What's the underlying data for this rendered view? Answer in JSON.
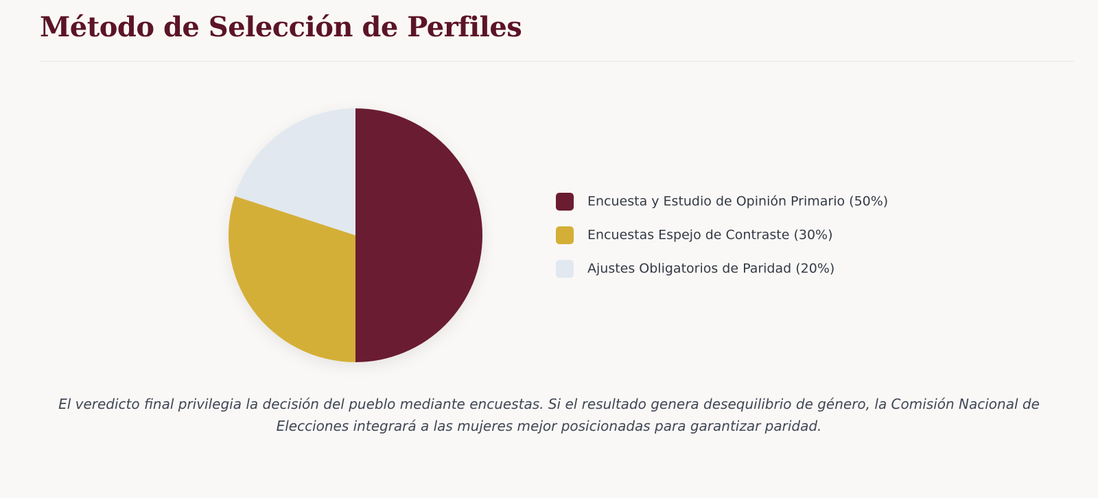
{
  "chart_data": {
    "type": "pie",
    "title": "Método de Selección de Perfiles",
    "categories": [
      "Encuesta y Estudio de Opinión Primario (50%)",
      "Encuestas Espejo de Contraste (30%)",
      "Ajustes Obligatorios de Paridad (20%)"
    ],
    "values": [
      50,
      30,
      20
    ],
    "colors": [
      "#6b1c31",
      "#d4af37",
      "#e2e8f0"
    ],
    "legend": "right",
    "caption": "El veredicto final privilegia la decisión del pueblo mediante encuestas. Si el resultado genera desequilibrio de género, la Comisión Nacional de Elecciones integrará a las mujeres mejor posicionadas para garantizar paridad."
  }
}
